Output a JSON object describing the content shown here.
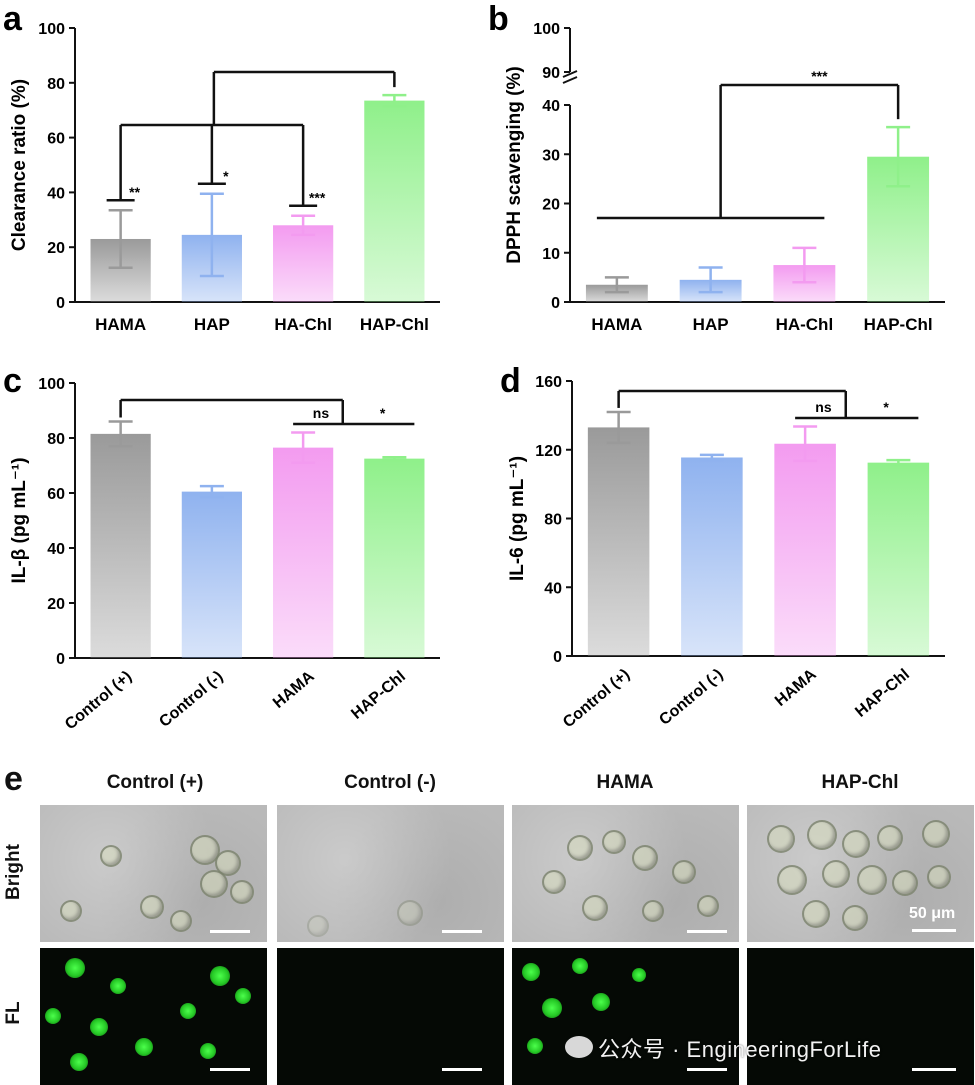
{
  "charts": [
    {
      "id": "a",
      "letter": "a",
      "type": "bar",
      "ylabel": "Clearance ratio (%)",
      "categories": [
        "HAMA",
        "HAP",
        "HA-Chl",
        "HAP-Chl"
      ],
      "values": [
        23,
        24.5,
        28,
        73.5
      ],
      "errors": [
        10.5,
        15,
        3.5,
        2
      ],
      "colors": [
        "#9a9a9a",
        "#8fb2ef",
        "#f39bf0",
        "#8ff08a"
      ],
      "ylim": [
        0,
        100
      ],
      "yticks": [
        0,
        20,
        40,
        60,
        80,
        100
      ],
      "significance": [
        {
          "from": 0,
          "to": 3,
          "label": "**"
        },
        {
          "from": 1,
          "to": 3,
          "label": "*"
        },
        {
          "from": 2,
          "to": 3,
          "label": "***"
        }
      ]
    },
    {
      "id": "b",
      "letter": "b",
      "type": "bar",
      "ylabel": "DPPH scavenging (%)",
      "categories": [
        "HAMA",
        "HAP",
        "HA-Chl",
        "HAP-Chl"
      ],
      "values": [
        3.5,
        4.5,
        7.5,
        29.5
      ],
      "errors": [
        1.5,
        2.5,
        3.5,
        6
      ],
      "colors": [
        "#9a9a9a",
        "#8fb2ef",
        "#f39bf0",
        "#8ff08a"
      ],
      "ylim": [
        0,
        40
      ],
      "yticks": [
        0,
        10,
        20,
        30,
        40
      ],
      "broken_axis_upper_ticks": [
        90,
        100
      ],
      "significance": [
        {
          "from": [
            0,
            2
          ],
          "to": 3,
          "label": "***"
        }
      ]
    },
    {
      "id": "c",
      "letter": "c",
      "type": "bar",
      "ylabel": "IL-β (pg mL⁻¹)",
      "categories": [
        "Control (+)",
        "Control (-)",
        "HAMA",
        "HAP-Chl"
      ],
      "values": [
        81.5,
        60.5,
        76.5,
        72.5
      ],
      "errors": [
        4.5,
        2,
        5.5,
        0.5
      ],
      "colors": [
        "#9a9a9a",
        "#8fb2ef",
        "#f39bf0",
        "#8ff08a"
      ],
      "ylim": [
        0,
        100
      ],
      "yticks": [
        0,
        20,
        40,
        60,
        80,
        100
      ],
      "significance": [
        {
          "from": 2,
          "to": 0,
          "label": "ns"
        },
        {
          "from": 3,
          "to": 0,
          "label": "*"
        }
      ]
    },
    {
      "id": "d",
      "letter": "d",
      "type": "bar",
      "ylabel": "IL-6 (pg mL⁻¹)",
      "categories": [
        "Control (+)",
        "Control (-)",
        "HAMA",
        "HAP-Chl"
      ],
      "values": [
        133,
        115.5,
        123.5,
        112.5
      ],
      "errors": [
        9,
        1.5,
        10,
        1.5
      ],
      "colors": [
        "#9a9a9a",
        "#8fb2ef",
        "#f39bf0",
        "#8ff08a"
      ],
      "ylim": [
        0,
        160
      ],
      "yticks": [
        0,
        40,
        80,
        120,
        160
      ],
      "significance": [
        {
          "from": 2,
          "to": 0,
          "label": "ns"
        },
        {
          "from": 3,
          "to": 0,
          "label": "*"
        }
      ]
    }
  ],
  "panel_e": {
    "letter": "e",
    "columns": [
      "Control (+)",
      "Control (-)",
      "HAMA",
      "HAP-Chl"
    ],
    "rows": [
      "Bright",
      "FL"
    ],
    "scale_bar_label": "50 μm"
  },
  "watermark": "公众号 · EngineeringForLife"
}
